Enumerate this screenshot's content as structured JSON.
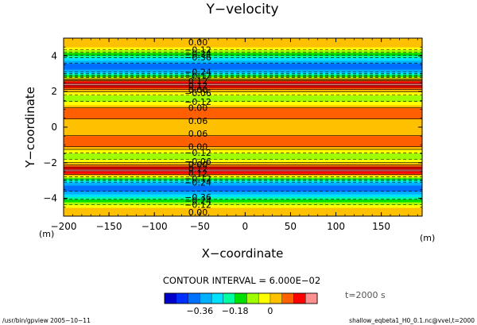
{
  "chart_data": {
    "type": "heatmap",
    "title": "Y−velocity",
    "xlabel": "X−coordinate",
    "ylabel": "Y−coordinate",
    "x_unit": "(m)",
    "y_unit": "(m)",
    "xlim": [
      -200,
      195
    ],
    "ylim": [
      -5,
      5
    ],
    "x_ticks": [
      -200,
      -150,
      -100,
      -50,
      0,
      50,
      100,
      150
    ],
    "x_tick_labels": [
      "−200",
      "−150",
      "−100",
      "−50",
      "0",
      "50",
      "100",
      "150"
    ],
    "y_ticks": [
      -4,
      -2,
      0,
      2,
      4
    ],
    "y_tick_labels": [
      "−4",
      "−2",
      "0",
      "2",
      "4"
    ],
    "field_profile": {
      "y": [
        -5.0,
        -4.5,
        -4.2,
        -3.9,
        -3.6,
        -3.35,
        -3.1,
        -2.85,
        -2.6,
        -2.4,
        -2.2,
        -1.9,
        -1.6,
        -1.3,
        -1.0,
        -0.7,
        -0.4,
        0.0,
        0.4,
        0.7,
        1.0,
        1.3,
        1.6,
        1.9,
        2.2,
        2.4,
        2.6,
        2.85,
        3.1,
        3.35,
        3.6,
        3.9,
        4.2,
        4.5,
        5.0
      ],
      "value": [
        0.01,
        0.0,
        -0.12,
        -0.24,
        -0.36,
        -0.4,
        -0.3,
        -0.12,
        0.12,
        0.2,
        0.1,
        -0.04,
        -0.1,
        -0.02,
        0.1,
        0.12,
        0.04,
        0.0,
        0.04,
        0.12,
        0.1,
        -0.02,
        -0.1,
        -0.04,
        0.1,
        0.2,
        0.12,
        -0.12,
        -0.3,
        -0.4,
        -0.36,
        -0.24,
        -0.12,
        0.0,
        0.01
      ]
    },
    "contour_interval_text": "CONTOUR INTERVAL = 6.000E−02",
    "contour_labels": [
      {
        "y": 4.78,
        "text": "0.00"
      },
      {
        "y": 4.35,
        "text": "−0.12"
      },
      {
        "y": 4.12,
        "text": "−0.24"
      },
      {
        "y": 3.92,
        "text": "−0.36"
      },
      {
        "y": 3.1,
        "text": "−0.24"
      },
      {
        "y": 2.88,
        "text": "−0.12"
      },
      {
        "y": 2.58,
        "text": "0.12"
      },
      {
        "y": 2.35,
        "text": "0.12"
      },
      {
        "y": 2.1,
        "text": "0.00"
      },
      {
        "y": 1.92,
        "text": "−0.06"
      },
      {
        "y": 1.42,
        "text": "−0.12"
      },
      {
        "y": 1.1,
        "text": "0.00"
      },
      {
        "y": 0.35,
        "text": "0.06"
      },
      {
        "y": -0.35,
        "text": "0.06"
      },
      {
        "y": -1.1,
        "text": "0.00"
      },
      {
        "y": -1.42,
        "text": "−0.12"
      },
      {
        "y": -1.92,
        "text": "−0.06"
      },
      {
        "y": -2.1,
        "text": "0.00"
      },
      {
        "y": -2.35,
        "text": "0.12"
      },
      {
        "y": -2.58,
        "text": "0.12"
      },
      {
        "y": -2.88,
        "text": "−0.12"
      },
      {
        "y": -3.1,
        "text": "−0.24"
      },
      {
        "y": -3.92,
        "text": "−0.36"
      },
      {
        "y": -4.12,
        "text": "−0.24"
      },
      {
        "y": -4.35,
        "text": "−0.12"
      },
      {
        "y": -4.78,
        "text": "0.00"
      }
    ],
    "legend": {
      "levels": [
        -0.48,
        -0.42,
        -0.36,
        -0.3,
        -0.24,
        -0.18,
        -0.12,
        -0.06,
        0.0,
        0.06,
        0.12,
        0.18,
        0.24
      ],
      "tick_values": [
        -0.36,
        -0.18,
        0
      ],
      "tick_labels": [
        "−0.36",
        "−0.18",
        "0"
      ],
      "colors": [
        "#0000c8",
        "#0030ff",
        "#0070ff",
        "#00b0ff",
        "#00e0ff",
        "#00ffa0",
        "#00e000",
        "#a0ff00",
        "#ffff00",
        "#ffc000",
        "#ff6000",
        "#ff0000",
        "#ff9090"
      ]
    },
    "time_label": "t=2000 s",
    "grid": false
  },
  "footer": {
    "left": "/usr/bin/gpview   2005−10−11",
    "right": "shallow_eqbeta1_H0_0.1.nc@vvel,t=2000"
  }
}
